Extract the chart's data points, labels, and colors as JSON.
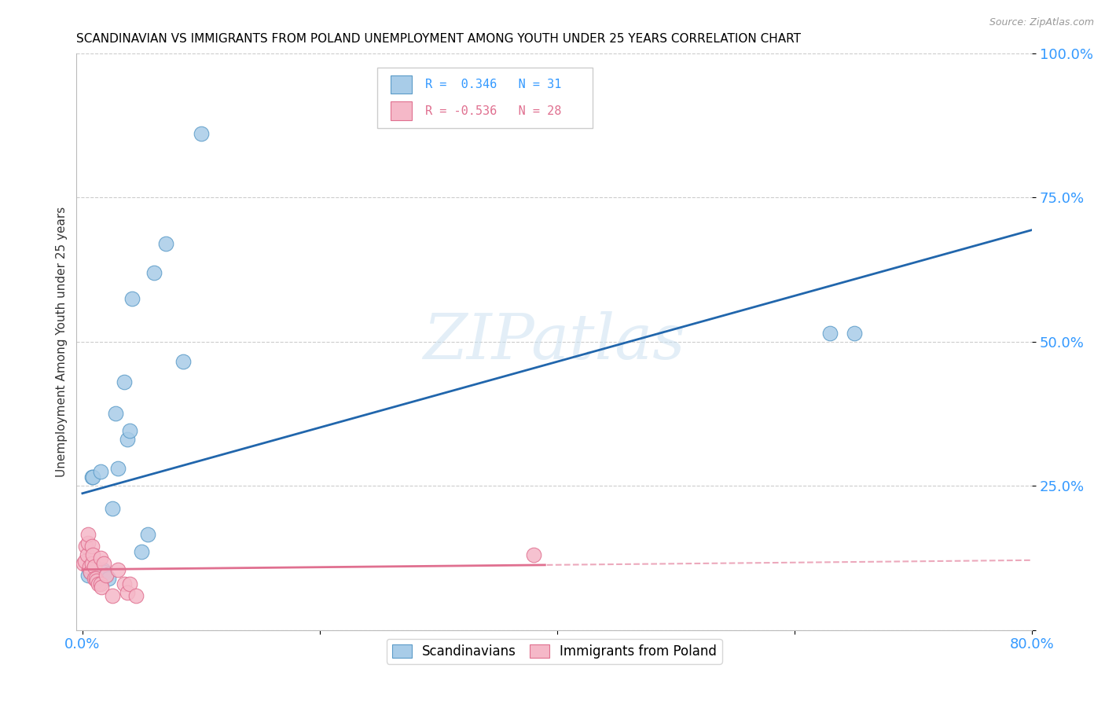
{
  "title": "SCANDINAVIAN VS IMMIGRANTS FROM POLAND UNEMPLOYMENT AMONG YOUTH UNDER 25 YEARS CORRELATION CHART",
  "source": "Source: ZipAtlas.com",
  "ylabel": "Unemployment Among Youth under 25 years",
  "xlim": [
    -0.005,
    0.8
  ],
  "ylim": [
    0.0,
    1.0
  ],
  "xticks": [
    0.0,
    0.2,
    0.4,
    0.6,
    0.8
  ],
  "xticklabels": [
    "0.0%",
    "",
    "",
    "",
    "80.0%"
  ],
  "yticks": [
    0.0,
    0.25,
    0.5,
    0.75,
    1.0
  ],
  "yticklabels": [
    "",
    "25.0%",
    "50.0%",
    "75.0%",
    "100.0%"
  ],
  "scandinavians_x": [
    0.005,
    0.007,
    0.008,
    0.009,
    0.01,
    0.01,
    0.011,
    0.012,
    0.013,
    0.014,
    0.015,
    0.015,
    0.017,
    0.018,
    0.02,
    0.022,
    0.025,
    0.028,
    0.03,
    0.035,
    0.038,
    0.04,
    0.042,
    0.05,
    0.055,
    0.06,
    0.07,
    0.085,
    0.1,
    0.63,
    0.65
  ],
  "scandinavians_y": [
    0.095,
    0.1,
    0.265,
    0.265,
    0.1,
    0.11,
    0.095,
    0.105,
    0.09,
    0.095,
    0.09,
    0.275,
    0.105,
    0.1,
    0.095,
    0.09,
    0.21,
    0.375,
    0.28,
    0.43,
    0.33,
    0.345,
    0.575,
    0.135,
    0.165,
    0.62,
    0.67,
    0.465,
    0.86,
    0.515,
    0.515
  ],
  "poland_x": [
    0.001,
    0.002,
    0.003,
    0.004,
    0.005,
    0.005,
    0.006,
    0.007,
    0.008,
    0.008,
    0.009,
    0.01,
    0.01,
    0.011,
    0.012,
    0.013,
    0.015,
    0.015,
    0.016,
    0.018,
    0.02,
    0.025,
    0.03,
    0.035,
    0.038,
    0.04,
    0.045,
    0.38
  ],
  "poland_y": [
    0.115,
    0.12,
    0.145,
    0.13,
    0.15,
    0.165,
    0.11,
    0.1,
    0.115,
    0.145,
    0.13,
    0.11,
    0.09,
    0.09,
    0.085,
    0.08,
    0.125,
    0.08,
    0.075,
    0.115,
    0.095,
    0.06,
    0.105,
    0.08,
    0.065,
    0.08,
    0.06,
    0.13
  ],
  "scand_R": 0.346,
  "scand_N": 31,
  "poland_R": -0.536,
  "poland_N": 28,
  "blue_fill": "#a8cce8",
  "blue_edge": "#5b9bc8",
  "pink_fill": "#f5b8c8",
  "pink_edge": "#e07090",
  "blue_line": "#2166ac",
  "pink_line": "#e07090",
  "watermark": "ZIPatlas",
  "watermark_color": "#c8dff0",
  "bg_color": "#ffffff",
  "grid_color": "#cccccc",
  "tick_color": "#3399ff",
  "ylabel_color": "#333333"
}
